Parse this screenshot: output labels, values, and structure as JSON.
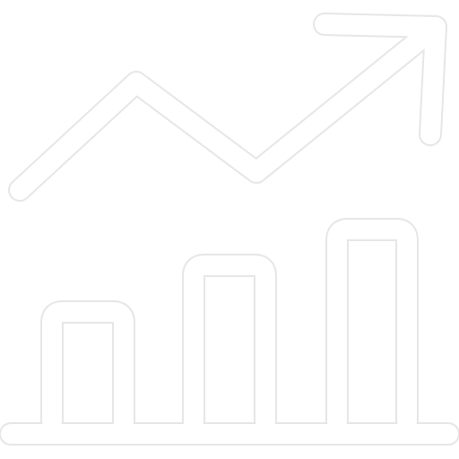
{
  "icon": {
    "name": "growth-chart-icon",
    "stroke_color": "#ffffff",
    "outline_color": "#e6e6e6",
    "background": "#ffffff"
  }
}
